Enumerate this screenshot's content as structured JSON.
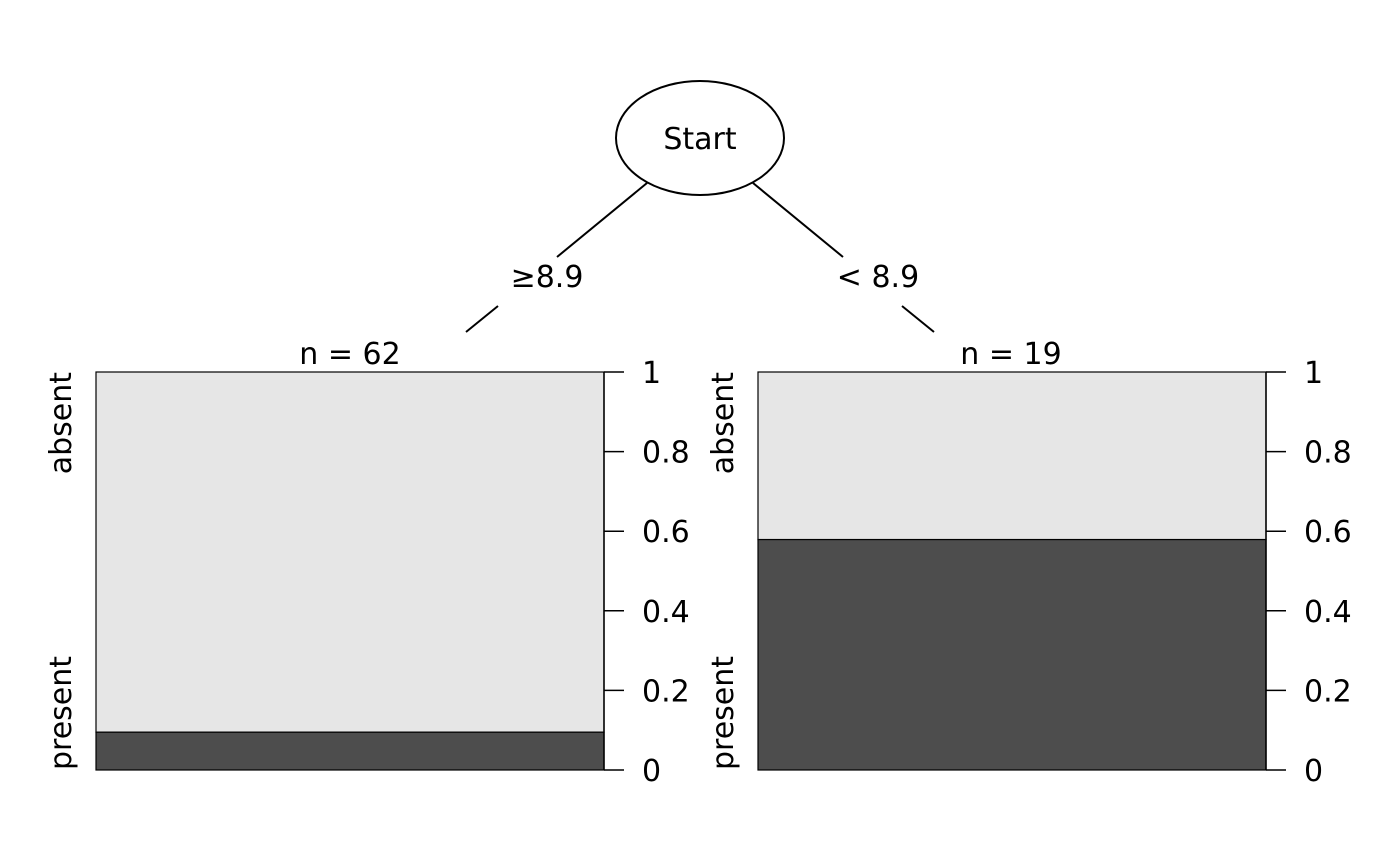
{
  "root": {
    "label": "Start"
  },
  "edges": [
    {
      "label": "≥8.9"
    },
    {
      "label": "< 8.9"
    }
  ],
  "chart_data": [
    {
      "type": "bar",
      "stacked": true,
      "node_label": "n = 62",
      "categories": [
        "present",
        "absent"
      ],
      "values": [
        0.095,
        0.905
      ],
      "ylim": [
        0,
        1
      ],
      "yticks": [
        "0",
        "0.2",
        "0.4",
        "0.6",
        "0.8",
        "1"
      ],
      "grid": false
    },
    {
      "type": "bar",
      "stacked": true,
      "node_label": "n = 19",
      "categories": [
        "present",
        "absent"
      ],
      "values": [
        0.579,
        0.421
      ],
      "ylim": [
        0,
        1
      ],
      "yticks": [
        "0",
        "0.2",
        "0.4",
        "0.6",
        "0.8",
        "1"
      ],
      "grid": false
    }
  ],
  "colors": {
    "present": "#4d4d4d",
    "absent": "#e6e6e6",
    "stroke": "#000000"
  }
}
